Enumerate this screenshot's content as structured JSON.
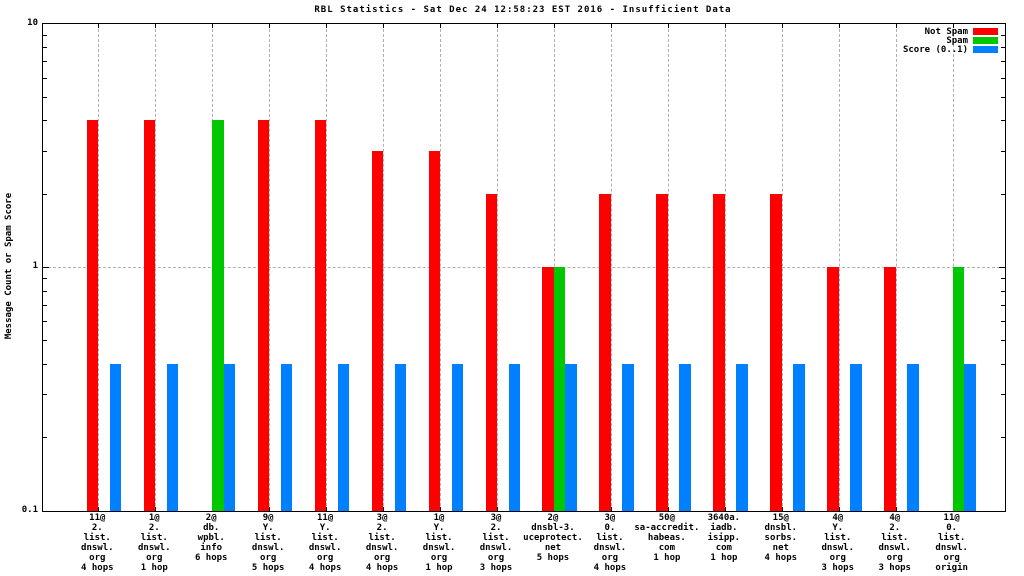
{
  "chart_data": {
    "type": "bar",
    "title": "RBL Statistics - Sat Dec 24 12:58:23 EST 2016 - Insufficient Data",
    "ylabel": "Message Count or Spam Score",
    "yscale": "log",
    "ylim": [
      0.1,
      10
    ],
    "ytick_labels": [
      {
        "text": "10",
        "value": 10
      },
      {
        "text": "1",
        "value": 1
      },
      {
        "text": "0.1",
        "value": 0.1
      }
    ],
    "grid": "dashed, vertical line at each cluster, horizontal line at y=1",
    "legend_position": "top-right-inside",
    "legend": [
      {
        "name": "not_spam",
        "label": "Not Spam",
        "color": "#ff0000"
      },
      {
        "name": "spam",
        "label": "Spam",
        "color": "#00c800"
      },
      {
        "name": "score",
        "label": "Score (0..1)",
        "color": "#0080ff"
      }
    ],
    "colors": {
      "not_spam": "#ff0000",
      "spam": "#00c800",
      "score": "#0080ff",
      "grid": "#b0b0b0",
      "frame": "#000000"
    },
    "clusters": [
      {
        "label_lines": [
          "11@",
          "2.",
          "list.",
          "dnswl.",
          "org",
          "4 hops"
        ],
        "not_spam": 4,
        "spam": null,
        "score": 0.4
      },
      {
        "label_lines": [
          "1@",
          "2.",
          "list.",
          "dnswl.",
          "org",
          "1 hop"
        ],
        "not_spam": 4,
        "spam": null,
        "score": 0.4
      },
      {
        "label_lines": [
          "2@",
          "db.",
          "wpbl.",
          "info",
          "6 hops"
        ],
        "not_spam": null,
        "spam": 4,
        "score": 0.4
      },
      {
        "label_lines": [
          "9@",
          "Y.",
          "list.",
          "dnswl.",
          "org",
          "5 hops"
        ],
        "not_spam": 4,
        "spam": null,
        "score": 0.4
      },
      {
        "label_lines": [
          "11@",
          "Y.",
          "list.",
          "dnswl.",
          "org",
          "4 hops"
        ],
        "not_spam": 4,
        "spam": null,
        "score": 0.4
      },
      {
        "label_lines": [
          "3@",
          "2.",
          "list.",
          "dnswl.",
          "org",
          "4 hops"
        ],
        "not_spam": 3,
        "spam": null,
        "score": 0.4
      },
      {
        "label_lines": [
          "1@",
          "Y.",
          "list.",
          "dnswl.",
          "org",
          "1 hop"
        ],
        "not_spam": 3,
        "spam": null,
        "score": 0.4
      },
      {
        "label_lines": [
          "3@",
          "2.",
          "list.",
          "dnswl.",
          "org",
          "3 hops"
        ],
        "not_spam": 2,
        "spam": null,
        "score": 0.4
      },
      {
        "label_lines": [
          "2@",
          "dnsbl-3.",
          "uceprotect.",
          "net",
          "5 hops"
        ],
        "not_spam": 1,
        "spam": 1,
        "score": 0.4
      },
      {
        "label_lines": [
          "3@",
          "0.",
          "list.",
          "dnswl.",
          "org",
          "4 hops"
        ],
        "not_spam": 2,
        "spam": null,
        "score": 0.4
      },
      {
        "label_lines": [
          "50@",
          "sa-accredit.",
          "habeas.",
          "com",
          "1 hop"
        ],
        "not_spam": 2,
        "spam": null,
        "score": 0.4
      },
      {
        "label_lines": [
          "3640a.",
          "iadb.",
          "isipp.",
          "com",
          "1 hop"
        ],
        "not_spam": 2,
        "spam": null,
        "score": 0.4
      },
      {
        "label_lines": [
          "15@",
          "dnsbl.",
          "sorbs.",
          "net",
          "4 hops"
        ],
        "not_spam": 2,
        "spam": null,
        "score": 0.4
      },
      {
        "label_lines": [
          "4@",
          "Y.",
          "list.",
          "dnswl.",
          "org",
          "3 hops"
        ],
        "not_spam": 1,
        "spam": null,
        "score": 0.4
      },
      {
        "label_lines": [
          "4@",
          "2.",
          "list.",
          "dnswl.",
          "org",
          "3 hops"
        ],
        "not_spam": 1,
        "spam": null,
        "score": 0.4
      },
      {
        "label_lines": [
          "11@",
          "0.",
          "list.",
          "dnswl.",
          "org",
          "origin"
        ],
        "not_spam": null,
        "spam": 1,
        "score": 0.4
      }
    ]
  }
}
